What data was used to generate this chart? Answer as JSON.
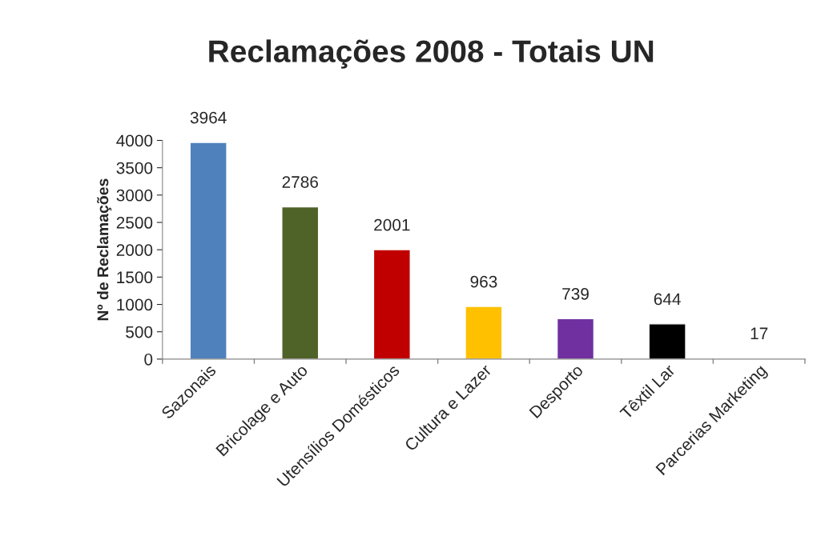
{
  "chart_data": {
    "type": "bar",
    "title": "Reclamações 2008 - Totais UN",
    "ylabel": "Nº de Reclamações",
    "categories": [
      "Sazonais",
      "Bricolage e Auto",
      "Utensílios Domésticos",
      "Cultura e Lazer",
      "Desporto",
      "Têxtil Lar",
      "Parcerias Marketing"
    ],
    "values": [
      3964,
      2786,
      2001,
      963,
      739,
      644,
      17
    ],
    "colors": [
      "#4f81bd",
      "#4f6228",
      "#c00000",
      "#ffc000",
      "#7030a0",
      "#000000",
      "#00b050"
    ],
    "ylim": [
      0,
      4000
    ],
    "yticks": [
      0,
      500,
      1000,
      1500,
      2000,
      2500,
      3000,
      3500,
      4000
    ],
    "data_labels": true,
    "grid": false,
    "legend": false
  }
}
